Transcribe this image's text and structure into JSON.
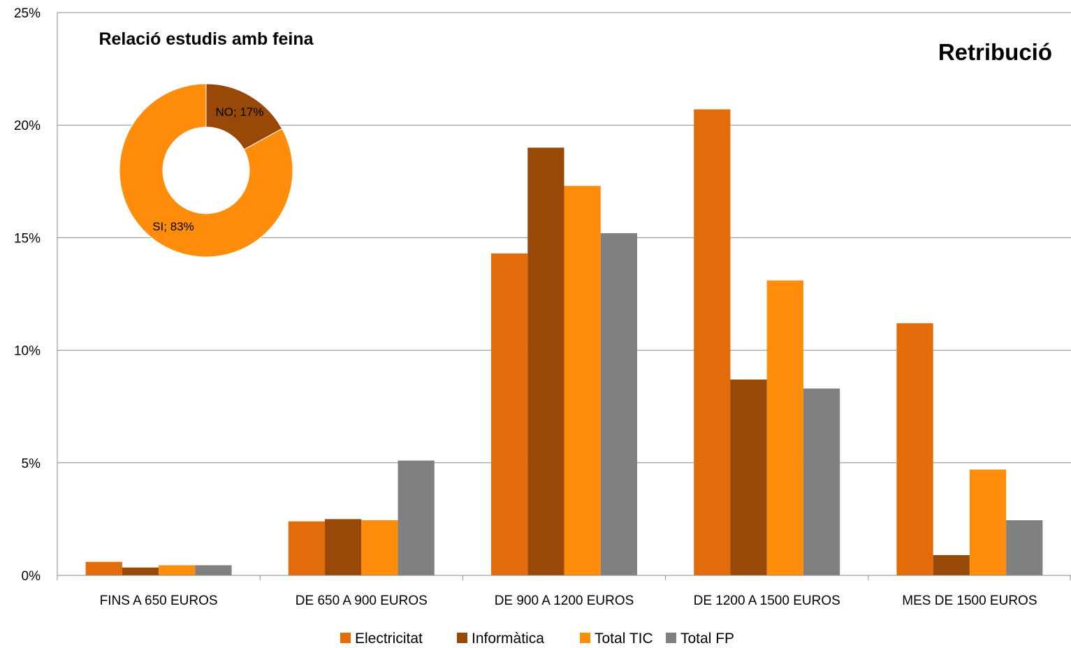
{
  "chart_data": [
    {
      "type": "bar",
      "title": "Retribució",
      "categories": [
        "FINS A 650 EUROS",
        "DE 650 A 900 EUROS",
        "DE 900 A 1200 EUROS",
        "DE 1200 A 1500 EUROS",
        "MES DE 1500 EUROS"
      ],
      "series": [
        {
          "name": "Electricitat",
          "color": "#E26B0A",
          "values": [
            0.6,
            2.4,
            14.3,
            20.7,
            11.2
          ]
        },
        {
          "name": "Informàtica",
          "color": "#984807",
          "values": [
            0.35,
            2.5,
            19.0,
            8.7,
            0.9
          ]
        },
        {
          "name": "Total TIC",
          "color": "#FF8C0A",
          "values": [
            0.45,
            2.45,
            17.3,
            13.1,
            4.7
          ]
        },
        {
          "name": "Total FP",
          "color": "#808080",
          "values": [
            0.45,
            5.1,
            15.2,
            8.3,
            2.45
          ]
        }
      ],
      "ylim": [
        0,
        25
      ],
      "yticks": [
        "0%",
        "5%",
        "10%",
        "15%",
        "20%",
        "25%"
      ],
      "grid": true,
      "legend": "bottom"
    },
    {
      "type": "pie",
      "title": "Relació estudis amb feina",
      "donut": true,
      "slices": [
        {
          "label": "NO; 17%",
          "value": 17,
          "color": "#984807"
        },
        {
          "label": "SI; 83%",
          "value": 83,
          "color": "#FF8C0A"
        }
      ]
    }
  ]
}
